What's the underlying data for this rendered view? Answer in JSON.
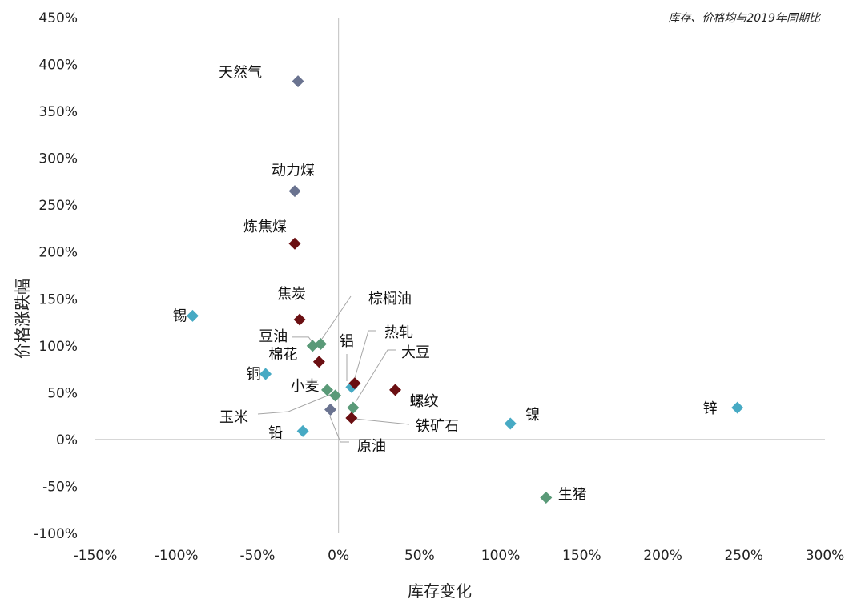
{
  "chart_data": {
    "type": "scatter",
    "title": "",
    "note": "库存、价格均与2019年同期比",
    "xlabel": "库存变化",
    "ylabel": "价格涨跌幅",
    "xlim": [
      -1.5,
      3.0
    ],
    "ylim": [
      -1.0,
      4.5
    ],
    "x_ticks": [
      "-150%",
      "-100%",
      "-50%",
      "0%",
      "50%",
      "100%",
      "150%",
      "200%",
      "250%",
      "300%"
    ],
    "y_ticks": [
      "450%",
      "400%",
      "350%",
      "300%",
      "250%",
      "200%",
      "150%",
      "100%",
      "50%",
      "0%",
      "-50%",
      "-100%"
    ],
    "grid": false,
    "colors": {
      "energy": "#6a7390",
      "ferrous": "#6b0f12",
      "agri": "#5a9a78",
      "metal": "#47aac4",
      "axis": "#bfbfbf",
      "leader": "#a6a6a6"
    },
    "points": [
      {
        "label": "天然气",
        "x": -0.25,
        "y": 3.82,
        "color": "energy"
      },
      {
        "label": "动力煤",
        "x": -0.27,
        "y": 2.65,
        "color": "energy"
      },
      {
        "label": "炼焦煤",
        "x": -0.27,
        "y": 2.09,
        "color": "ferrous"
      },
      {
        "label": "焦炭",
        "x": -0.24,
        "y": 1.28,
        "color": "ferrous"
      },
      {
        "label": "锡",
        "x": -0.9,
        "y": 1.32,
        "color": "metal"
      },
      {
        "label": "豆油",
        "x": -0.16,
        "y": 1.0,
        "color": "agri"
      },
      {
        "label": "棕榈油",
        "x": -0.11,
        "y": 1.02,
        "color": "agri"
      },
      {
        "label": "棉花",
        "x": -0.12,
        "y": 0.83,
        "color": "ferrous"
      },
      {
        "label": "铜",
        "x": -0.45,
        "y": 0.7,
        "color": "metal"
      },
      {
        "label": "小麦",
        "x": -0.07,
        "y": 0.53,
        "color": "agri"
      },
      {
        "label": "玉米",
        "x": -0.02,
        "y": 0.47,
        "color": "agri"
      },
      {
        "label": "原油",
        "x": -0.05,
        "y": 0.32,
        "color": "energy"
      },
      {
        "label": "铅",
        "x": -0.22,
        "y": 0.09,
        "color": "metal"
      },
      {
        "label": "铝",
        "x": 0.08,
        "y": 0.56,
        "color": "metal"
      },
      {
        "label": "热轧",
        "x": 0.1,
        "y": 0.6,
        "color": "ferrous"
      },
      {
        "label": "大豆",
        "x": 0.09,
        "y": 0.34,
        "color": "agri"
      },
      {
        "label": "铁矿石",
        "x": 0.08,
        "y": 0.23,
        "color": "ferrous"
      },
      {
        "label": "螺纹",
        "x": 0.35,
        "y": 0.53,
        "color": "ferrous"
      },
      {
        "label": "镍",
        "x": 1.06,
        "y": 0.17,
        "color": "metal"
      },
      {
        "label": "锌",
        "x": 2.46,
        "y": 0.34,
        "color": "metal"
      },
      {
        "label": "生猪",
        "x": 1.28,
        "y": -0.62,
        "color": "agri"
      }
    ]
  }
}
